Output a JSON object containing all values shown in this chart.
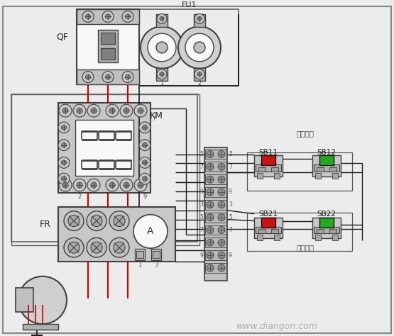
{
  "bg_color": "#ececec",
  "wire_red": "#cc0000",
  "wire_black": "#1a1a1a",
  "comp_fill": "#d4d4d4",
  "comp_border": "#404040",
  "white_fill": "#f8f8f8",
  "green_btn": "#22aa22",
  "red_btn": "#cc1111",
  "text_color": "#222222",
  "watermark_color": "#b0b0b0",
  "labels": {
    "QF": "QF",
    "FU1": "FU1",
    "KM": "KM",
    "FR": "FR",
    "SB11": "SB11",
    "SB12": "SB12",
    "SB21": "SB21",
    "SB22": "SB22",
    "jia": "甲地控制",
    "yi": "乙地控制",
    "watermark": "www.diangon.com"
  }
}
